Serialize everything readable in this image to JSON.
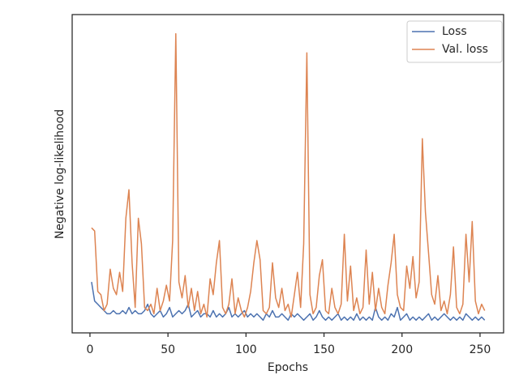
{
  "chart_data": {
    "type": "line",
    "x_label": "Epochs",
    "y_label": "Negative log-likelihood",
    "xlim": [
      -11.4,
      265.1
    ],
    "xticks": [
      0,
      50,
      100,
      150,
      200,
      250
    ],
    "ylim": [
      0,
      100
    ],
    "legend": "upper right",
    "x": [
      1,
      3,
      5,
      7,
      9,
      11,
      13,
      15,
      17,
      19,
      21,
      23,
      25,
      27,
      29,
      31,
      33,
      35,
      37,
      39,
      41,
      43,
      45,
      47,
      49,
      51,
      53,
      55,
      57,
      59,
      61,
      63,
      65,
      67,
      69,
      71,
      73,
      75,
      77,
      79,
      81,
      83,
      85,
      87,
      89,
      91,
      93,
      95,
      97,
      99,
      101,
      103,
      105,
      107,
      109,
      111,
      113,
      115,
      117,
      119,
      121,
      123,
      125,
      127,
      129,
      131,
      133,
      135,
      137,
      139,
      141,
      143,
      145,
      147,
      149,
      151,
      153,
      155,
      157,
      159,
      161,
      163,
      165,
      167,
      169,
      171,
      173,
      175,
      177,
      179,
      181,
      183,
      185,
      187,
      189,
      191,
      193,
      195,
      197,
      199,
      201,
      203,
      205,
      207,
      209,
      211,
      213,
      215,
      217,
      219,
      221,
      223,
      225,
      227,
      229,
      231,
      233,
      235,
      237,
      239,
      241,
      243,
      245,
      247,
      249,
      251,
      253
    ],
    "series": [
      {
        "name": "Loss",
        "color": "#4c72b0",
        "values": [
          16,
          10,
          9,
          8,
          7,
          6,
          6,
          7,
          6,
          6,
          7,
          6,
          8,
          6,
          7,
          6,
          6,
          7,
          9,
          6,
          5,
          6,
          7,
          5,
          6,
          8,
          5,
          6,
          7,
          6,
          7,
          9,
          5,
          6,
          7,
          5,
          6,
          6,
          5,
          7,
          5,
          6,
          5,
          6,
          8,
          5,
          6,
          5,
          6,
          7,
          5,
          6,
          5,
          6,
          5,
          4,
          6,
          5,
          7,
          5,
          5,
          6,
          5,
          4,
          6,
          5,
          6,
          5,
          4,
          5,
          6,
          4,
          5,
          7,
          5,
          4,
          5,
          4,
          5,
          6,
          4,
          5,
          4,
          5,
          4,
          6,
          4,
          5,
          4,
          5,
          4,
          8,
          5,
          4,
          5,
          4,
          6,
          5,
          8,
          4,
          5,
          6,
          4,
          5,
          4,
          5,
          4,
          5,
          6,
          4,
          5,
          4,
          5,
          6,
          5,
          4,
          5,
          4,
          5,
          4,
          6,
          5,
          4,
          5,
          4,
          5,
          4
        ]
      },
      {
        "name": "Val. loss",
        "color": "#dd8452",
        "values": [
          33,
          32,
          13,
          12,
          7,
          9,
          20,
          14,
          12,
          19,
          13,
          36,
          45,
          22,
          8,
          36,
          28,
          8,
          7,
          9,
          6,
          14,
          7,
          10,
          15,
          10,
          29,
          94,
          16,
          11,
          18,
          8,
          14,
          7,
          13,
          6,
          9,
          5,
          17,
          12,
          22,
          29,
          8,
          6,
          9,
          17,
          6,
          11,
          7,
          5,
          8,
          13,
          22,
          29,
          23,
          7,
          6,
          8,
          22,
          11,
          8,
          14,
          7,
          9,
          5,
          12,
          19,
          8,
          28,
          88,
          12,
          6,
          8,
          18,
          23,
          7,
          6,
          14,
          8,
          6,
          9,
          31,
          10,
          21,
          7,
          11,
          6,
          8,
          26,
          9,
          19,
          7,
          14,
          8,
          6,
          15,
          22,
          31,
          12,
          8,
          7,
          21,
          14,
          24,
          11,
          16,
          61,
          38,
          25,
          12,
          9,
          18,
          7,
          10,
          6,
          12,
          27,
          8,
          6,
          9,
          31,
          16,
          35,
          10,
          6,
          9,
          7
        ]
      }
    ]
  }
}
